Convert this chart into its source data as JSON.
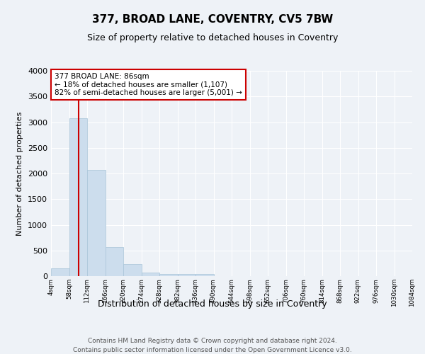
{
  "title": "377, BROAD LANE, COVENTRY, CV5 7BW",
  "subtitle": "Size of property relative to detached houses in Coventry",
  "xlabel": "Distribution of detached houses by size in Coventry",
  "ylabel": "Number of detached properties",
  "bar_color": "#ccdded",
  "bar_edge_color": "#a8c4d8",
  "background_color": "#eef2f7",
  "grid_color": "#ffffff",
  "vline_color": "#cc0000",
  "vline_x": 86,
  "bin_edges": [
    4,
    58,
    112,
    166,
    220,
    274,
    328,
    382,
    436,
    490,
    544,
    598,
    652,
    706,
    760,
    814,
    868,
    922,
    976,
    1030,
    1084
  ],
  "bar_heights": [
    150,
    3075,
    2075,
    560,
    230,
    70,
    40,
    40,
    40,
    0,
    0,
    0,
    0,
    0,
    0,
    0,
    0,
    0,
    0,
    0
  ],
  "ylim": [
    0,
    4000
  ],
  "yticks": [
    0,
    500,
    1000,
    1500,
    2000,
    2500,
    3000,
    3500,
    4000
  ],
  "annotation_text": "377 BROAD LANE: 86sqm\n← 18% of detached houses are smaller (1,107)\n82% of semi-detached houses are larger (5,001) →",
  "footer_line1": "Contains HM Land Registry data © Crown copyright and database right 2024.",
  "footer_line2": "Contains public sector information licensed under the Open Government Licence v3.0.",
  "tick_labels": [
    "4sqm",
    "58sqm",
    "112sqm",
    "166sqm",
    "220sqm",
    "274sqm",
    "328sqm",
    "382sqm",
    "436sqm",
    "490sqm",
    "544sqm",
    "598sqm",
    "652sqm",
    "706sqm",
    "760sqm",
    "814sqm",
    "868sqm",
    "922sqm",
    "976sqm",
    "1030sqm",
    "1084sqm"
  ]
}
